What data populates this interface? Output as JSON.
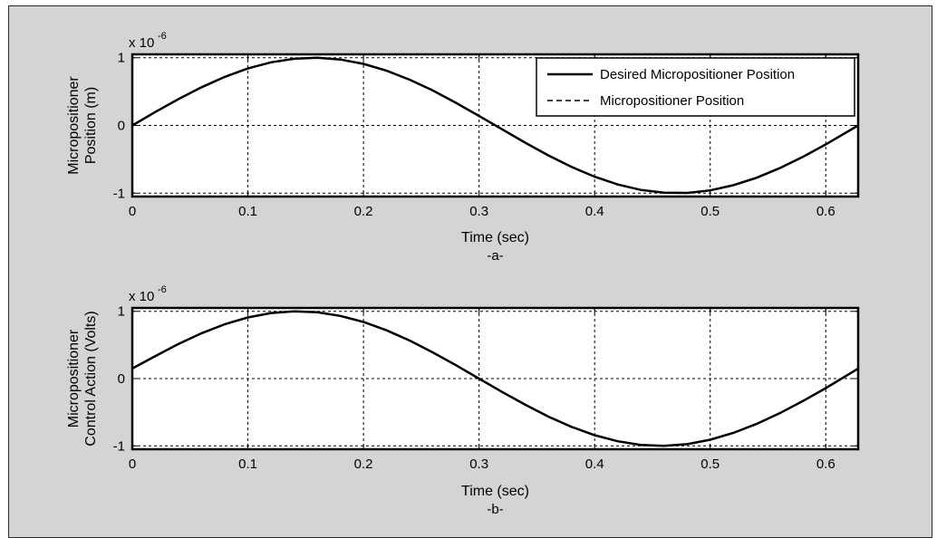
{
  "chart_data": [
    {
      "type": "line",
      "panel_label": "-a-",
      "xlabel": "Time (sec)",
      "ylabel": [
        "Micropositioner",
        "Position (m)"
      ],
      "exponent_label": "x 10",
      "exponent_power": "-6",
      "xlim": [
        0,
        0.628
      ],
      "ylim": [
        -1.05,
        1.05
      ],
      "xticks": [
        0,
        0.1,
        0.2,
        0.3,
        0.4,
        0.5,
        0.6
      ],
      "xtick_labels": [
        "0",
        "0.1",
        "0.2",
        "0.3",
        "0.4",
        "0.5",
        "0.6"
      ],
      "yticks": [
        -1,
        0,
        1
      ],
      "ytick_labels": [
        "-1",
        "0",
        "1"
      ],
      "grid": true,
      "legend_position": "top-right",
      "series": [
        {
          "name": "Desired Micropositioner Position",
          "style": "solid",
          "x": [
            0,
            0.02,
            0.04,
            0.06,
            0.08,
            0.1,
            0.12,
            0.14,
            0.16,
            0.18,
            0.2,
            0.22,
            0.24,
            0.26,
            0.28,
            0.3,
            0.32,
            0.34,
            0.36,
            0.38,
            0.4,
            0.42,
            0.44,
            0.46,
            0.48,
            0.5,
            0.52,
            0.54,
            0.56,
            0.58,
            0.6,
            0.628
          ],
          "y": [
            0,
            0.199,
            0.389,
            0.565,
            0.717,
            0.841,
            0.932,
            0.985,
            1.0,
            0.974,
            0.909,
            0.808,
            0.675,
            0.516,
            0.335,
            0.141,
            -0.058,
            -0.256,
            -0.443,
            -0.612,
            -0.757,
            -0.872,
            -0.952,
            -0.994,
            -0.996,
            -0.959,
            -0.883,
            -0.773,
            -0.631,
            -0.465,
            -0.279,
            0
          ]
        },
        {
          "name": "Micropositioner Position",
          "style": "dashed",
          "x": [
            0,
            0.02,
            0.04,
            0.06,
            0.08,
            0.1,
            0.12,
            0.14,
            0.16,
            0.18,
            0.2,
            0.22,
            0.24,
            0.26,
            0.28,
            0.3,
            0.32,
            0.34,
            0.36,
            0.38,
            0.4,
            0.42,
            0.44,
            0.46,
            0.48,
            0.5,
            0.52,
            0.54,
            0.56,
            0.58,
            0.6,
            0.628
          ],
          "y": [
            0,
            0.199,
            0.389,
            0.565,
            0.717,
            0.841,
            0.932,
            0.985,
            1.0,
            0.974,
            0.909,
            0.808,
            0.675,
            0.516,
            0.335,
            0.141,
            -0.058,
            -0.256,
            -0.443,
            -0.612,
            -0.757,
            -0.872,
            -0.952,
            -0.994,
            -0.996,
            -0.959,
            -0.883,
            -0.773,
            -0.631,
            -0.465,
            -0.279,
            0
          ]
        }
      ]
    },
    {
      "type": "line",
      "panel_label": "-b-",
      "xlabel": "Time (sec)",
      "ylabel": [
        "Micropositioner",
        "Control Action (Volts)"
      ],
      "exponent_label": "x 10",
      "exponent_power": "-6",
      "xlim": [
        0,
        0.628
      ],
      "ylim": [
        -1.05,
        1.05
      ],
      "xticks": [
        0,
        0.1,
        0.2,
        0.3,
        0.4,
        0.5,
        0.6
      ],
      "xtick_labels": [
        "0",
        "0.1",
        "0.2",
        "0.3",
        "0.4",
        "0.5",
        "0.6"
      ],
      "yticks": [
        -1,
        0,
        1
      ],
      "ytick_labels": [
        "-1",
        "0",
        "1"
      ],
      "grid": true,
      "series": [
        {
          "style": "solid",
          "x": [
            0,
            0.02,
            0.04,
            0.06,
            0.08,
            0.1,
            0.12,
            0.14,
            0.16,
            0.18,
            0.2,
            0.22,
            0.24,
            0.26,
            0.28,
            0.3,
            0.32,
            0.34,
            0.36,
            0.38,
            0.4,
            0.42,
            0.44,
            0.46,
            0.48,
            0.5,
            0.52,
            0.54,
            0.56,
            0.58,
            0.6,
            0.628
          ],
          "y": [
            0.15,
            0.335,
            0.516,
            0.675,
            0.808,
            0.909,
            0.974,
            1.0,
            0.985,
            0.932,
            0.841,
            0.717,
            0.565,
            0.389,
            0.199,
            0.0,
            -0.199,
            -0.389,
            -0.565,
            -0.717,
            -0.841,
            -0.932,
            -0.985,
            -1.0,
            -0.974,
            -0.909,
            -0.808,
            -0.675,
            -0.516,
            -0.335,
            -0.141,
            0.15
          ]
        }
      ]
    }
  ]
}
